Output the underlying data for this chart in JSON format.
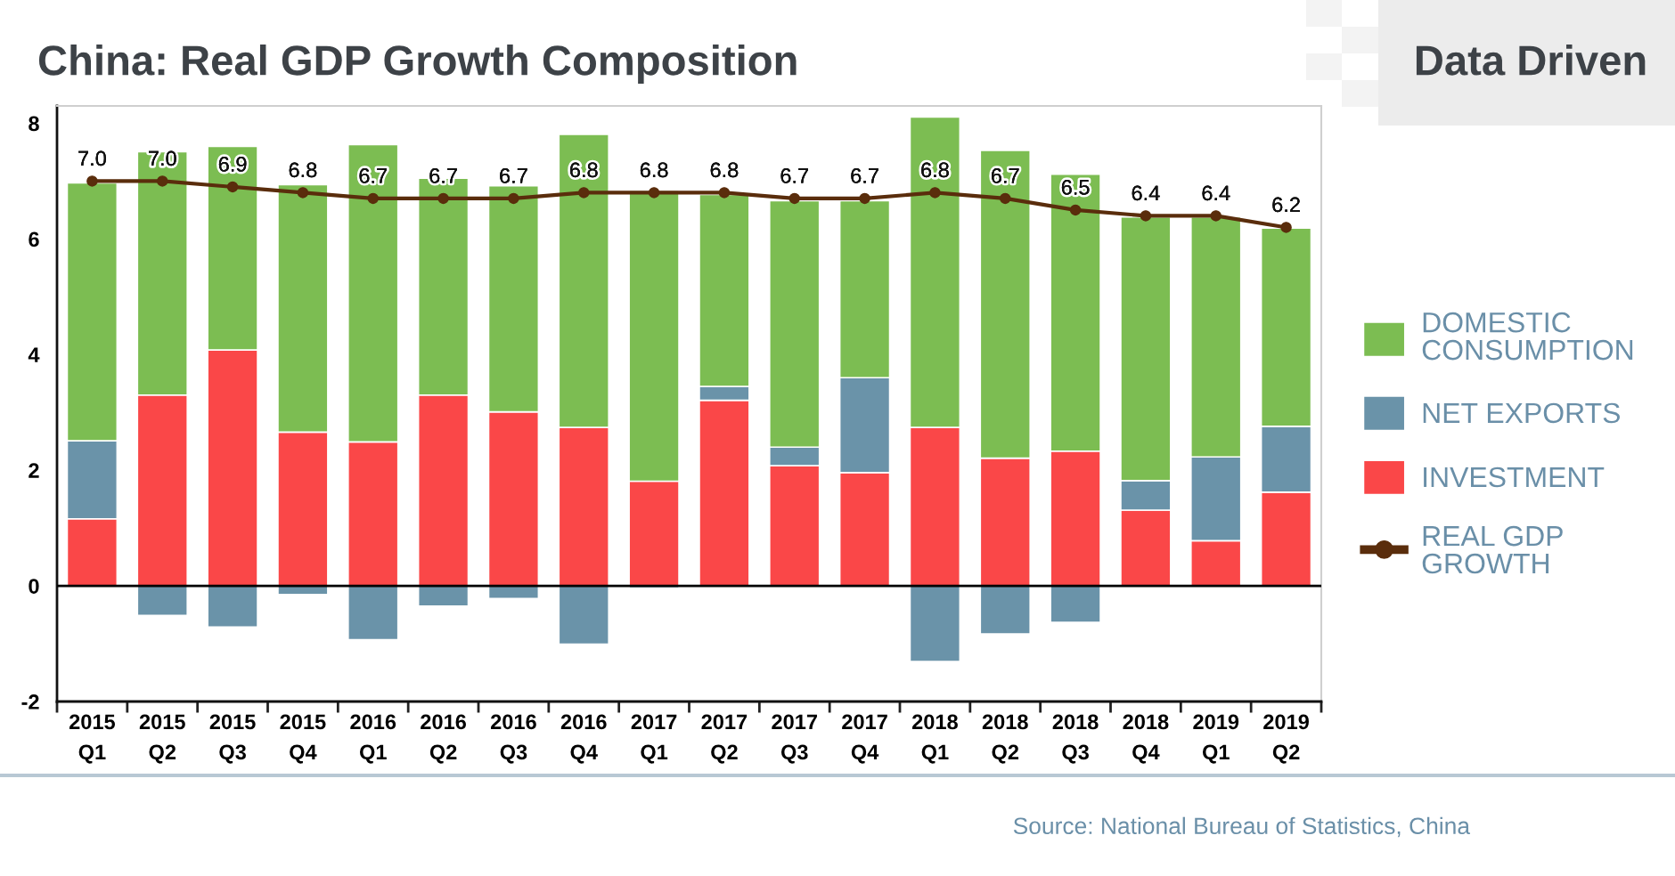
{
  "chart_data": {
    "type": "bar",
    "stacked": true,
    "title": "China: Real GDP Growth Composition",
    "categories": [
      "2015 Q1",
      "2015 Q2",
      "2015 Q3",
      "2015 Q4",
      "2016 Q1",
      "2016 Q2",
      "2016 Q3",
      "2016 Q4",
      "2017 Q1",
      "2017 Q2",
      "2017 Q3",
      "2017 Q4",
      "2018 Q1",
      "2018 Q2",
      "2018 Q3",
      "2018 Q4",
      "2019 Q1",
      "2019 Q2"
    ],
    "series": [
      {
        "name": "INVESTMENT",
        "color": "#fa4748",
        "values": [
          1.16,
          3.3,
          4.08,
          2.66,
          2.49,
          3.3,
          3.01,
          2.74,
          1.81,
          3.21,
          2.08,
          1.96,
          2.74,
          2.21,
          2.33,
          1.31,
          0.78,
          1.62
        ]
      },
      {
        "name": "NET EXPORTS",
        "color": "#6a93a9",
        "values": [
          1.35,
          -0.51,
          -0.71,
          -0.15,
          -0.93,
          -0.35,
          -0.22,
          -1.01,
          -0.04,
          0.24,
          0.32,
          1.64,
          -1.31,
          -0.83,
          -0.63,
          0.51,
          1.45,
          1.14
        ]
      },
      {
        "name": "DOMESTIC CONSUMPTION",
        "color": "#7cbd52",
        "values": [
          4.46,
          4.21,
          3.52,
          4.28,
          5.14,
          3.75,
          3.91,
          5.07,
          5.03,
          3.32,
          4.26,
          3.06,
          5.37,
          5.32,
          4.79,
          4.56,
          4.15,
          3.43
        ]
      },
      {
        "name": "REAL GDP GROWTH",
        "type": "line",
        "color": "#5a2d0c",
        "marker": "circle",
        "values": [
          7.0,
          7.0,
          6.9,
          6.8,
          6.7,
          6.7,
          6.7,
          6.8,
          6.8,
          6.8,
          6.7,
          6.7,
          6.8,
          6.7,
          6.5,
          6.4,
          6.4,
          6.2
        ],
        "value_labels": [
          "7.0",
          "7.0",
          "6.9",
          "6.8",
          "6.7",
          "6.7",
          "6.7",
          "6.8",
          "6.8",
          "6.8",
          "6.7",
          "6.7",
          "6.8",
          "6.7",
          "6.5",
          "6.4",
          "6.4",
          "6.2"
        ]
      }
    ],
    "ylim": [
      -2,
      8.3
    ],
    "yticks": [
      8,
      6,
      4,
      2,
      0,
      {
        "value": -2,
        "label": "-2"
      }
    ],
    "ref_lines": [
      {
        "axis": "y",
        "value": 0,
        "color": "#000000"
      }
    ],
    "legend": "right",
    "annotations": [
      "Data Driven",
      "Source: National Bureau of Statistics, China"
    ]
  }
}
